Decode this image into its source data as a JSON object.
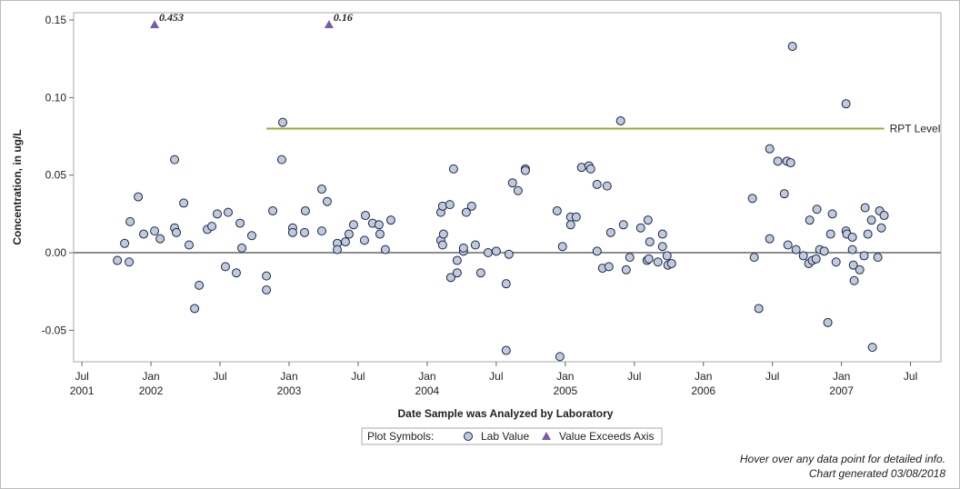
{
  "chart_data": {
    "type": "scatter",
    "y_label": "Concentration, in ug/L",
    "x_label": "Date Sample was Analyzed by Laboratory",
    "xlim": [
      2001.44,
      2007.72
    ],
    "ylim": [
      -0.0703,
      0.1547
    ],
    "xticks": [
      {
        "value": 2001.5,
        "label": "Jul\n2001"
      },
      {
        "value": 2002.0,
        "label": "Jan\n2002"
      },
      {
        "value": 2002.5,
        "label": "Jul"
      },
      {
        "value": 2003.0,
        "label": "Jan\n2003"
      },
      {
        "value": 2003.5,
        "label": "Jul"
      },
      {
        "value": 2004.0,
        "label": "Jan\n2004"
      },
      {
        "value": 2004.5,
        "label": "Jul"
      },
      {
        "value": 2005.0,
        "label": "Jan\n2005"
      },
      {
        "value": 2005.5,
        "label": "Jul"
      },
      {
        "value": 2006.0,
        "label": "Jan\n2006"
      },
      {
        "value": 2006.5,
        "label": "Jul"
      },
      {
        "value": 2007.0,
        "label": "Jan\n2007"
      },
      {
        "value": 2007.5,
        "label": "Jul"
      }
    ],
    "yticks": [
      0.15,
      {
        "value": 0.1,
        "label": "0.10"
      },
      0.05,
      {
        "value": 0,
        "label": "0.00"
      },
      -0.05
    ],
    "legend_title": "Plot Symbols:",
    "series": [
      {
        "name": "Lab Value",
        "marker": "circle",
        "color": "#bfcadf",
        "x": [
          2001.757,
          2001.809,
          2001.842,
          2001.849,
          2001.908,
          2001.947,
          2002.026,
          2002.066,
          2002.171,
          2002.171,
          2002.184,
          2002.237,
          2002.276,
          2002.316,
          2002.349,
          2002.408,
          2002.441,
          2002.48,
          2002.539,
          2002.559,
          2002.618,
          2002.645,
          2002.658,
          2002.73,
          2002.836,
          2002.836,
          2002.882,
          2002.947,
          2002.954,
          2003.026,
          2003.026,
          2003.112,
          2003.118,
          2003.237,
          2003.237,
          2003.276,
          2003.349,
          2003.349,
          2003.408,
          2003.434,
          2003.467,
          2003.553,
          2003.546,
          2003.605,
          2003.651,
          2003.658,
          2003.697,
          2003.737,
          2004.099,
          2004.112,
          2004.099,
          2004.112,
          2004.118,
          2004.164,
          2004.191,
          2004.171,
          2004.217,
          2004.217,
          2004.263,
          2004.263,
          2004.283,
          2004.322,
          2004.349,
          2004.388,
          2004.441,
          2004.5,
          2004.572,
          2004.572,
          2004.592,
          2004.618,
          2004.658,
          2004.711,
          2004.711,
          2004.941,
          2004.961,
          2004.98,
          2005.039,
          2005.039,
          2005.079,
          2005.118,
          2005.171,
          2005.184,
          2005.23,
          2005.23,
          2005.27,
          2005.303,
          2005.316,
          2005.329,
          2005.401,
          2005.421,
          2005.441,
          2005.467,
          2005.546,
          2005.592,
          2005.599,
          2005.612,
          2005.605,
          2005.671,
          2005.704,
          2005.704,
          2005.737,
          2005.743,
          2005.77,
          2006.355,
          2006.368,
          2006.401,
          2006.48,
          2006.48,
          2006.539,
          2006.586,
          2006.605,
          2006.632,
          2006.645,
          2006.612,
          2006.671,
          2006.724,
          2006.763,
          2006.77,
          2006.789,
          2006.816,
          2006.822,
          2006.842,
          2006.875,
          2006.901,
          2006.921,
          2006.934,
          2006.961,
          2007.033,
          2007.033,
          2007.039,
          2007.079,
          2007.079,
          2007.086,
          2007.092,
          2007.132,
          2007.164,
          2007.171,
          2007.191,
          2007.217,
          2007.224,
          2007.263,
          2007.276,
          2007.289,
          2007.309
        ],
        "values": [
          -0.005,
          0.006,
          -0.006,
          0.02,
          0.036,
          0.012,
          0.014,
          0.009,
          0.06,
          0.016,
          0.013,
          0.032,
          0.005,
          -0.036,
          -0.021,
          0.015,
          0.017,
          0.025,
          -0.009,
          0.026,
          -0.013,
          0.019,
          0.003,
          0.011,
          -0.015,
          -0.024,
          0.027,
          0.06,
          0.084,
          0.016,
          0.013,
          0.013,
          0.027,
          0.041,
          0.014,
          0.033,
          0.006,
          0.002,
          0.007,
          0.012,
          0.018,
          0.024,
          0.008,
          0.019,
          0.018,
          0.012,
          0.002,
          0.021,
          0.026,
          0.03,
          0.008,
          0.005,
          0.012,
          0.031,
          0.054,
          -0.016,
          -0.005,
          -0.013,
          0.001,
          0.003,
          0.026,
          0.03,
          0.005,
          -0.013,
          0,
          0.001,
          -0.063,
          -0.02,
          -0.001,
          0.045,
          0.04,
          0.054,
          0.053,
          0.027,
          -0.067,
          0.004,
          0.023,
          0.018,
          0.023,
          0.055,
          0.056,
          0.054,
          0.044,
          0.001,
          -0.01,
          0.043,
          -0.009,
          0.013,
          0.085,
          0.018,
          -0.011,
          -0.003,
          0.016,
          -0.005,
          0.021,
          0.007,
          -0.004,
          -0.006,
          0.012,
          0.004,
          -0.002,
          -0.008,
          -0.007,
          0.035,
          -0.003,
          -0.036,
          0.067,
          0.009,
          0.059,
          0.038,
          0.059,
          0.058,
          0.133,
          0.005,
          0.002,
          -0.002,
          -0.007,
          0.021,
          -0.005,
          -0.004,
          0.028,
          0.002,
          0.001,
          -0.045,
          0.012,
          0.025,
          -0.006,
          0.096,
          0.014,
          0.012,
          0.01,
          0.002,
          -0.008,
          -0.018,
          -0.011,
          -0.002,
          0.029,
          0.012,
          0.021,
          -0.061,
          -0.003,
          0.027,
          0.016,
          0.024
        ]
      },
      {
        "name": "Value Exceeds Axis",
        "marker": "triangle",
        "color": "#7a5ca3",
        "x": [
          2002.026,
          2003.289
        ],
        "values": [
          0.453,
          0.16
        ],
        "value_labels": [
          "0.453",
          "0.16"
        ]
      }
    ],
    "reference_lines": [
      {
        "value": 0,
        "color": "#8c8c8c"
      },
      {
        "value": 0.08,
        "label": "RPT Level",
        "x": [
          2002.836,
          2007.309
        ],
        "color": "#9aa83a"
      }
    ],
    "notes": [
      "Hover over any data point for detailed info.",
      "Chart generated 03/08/2018"
    ]
  }
}
